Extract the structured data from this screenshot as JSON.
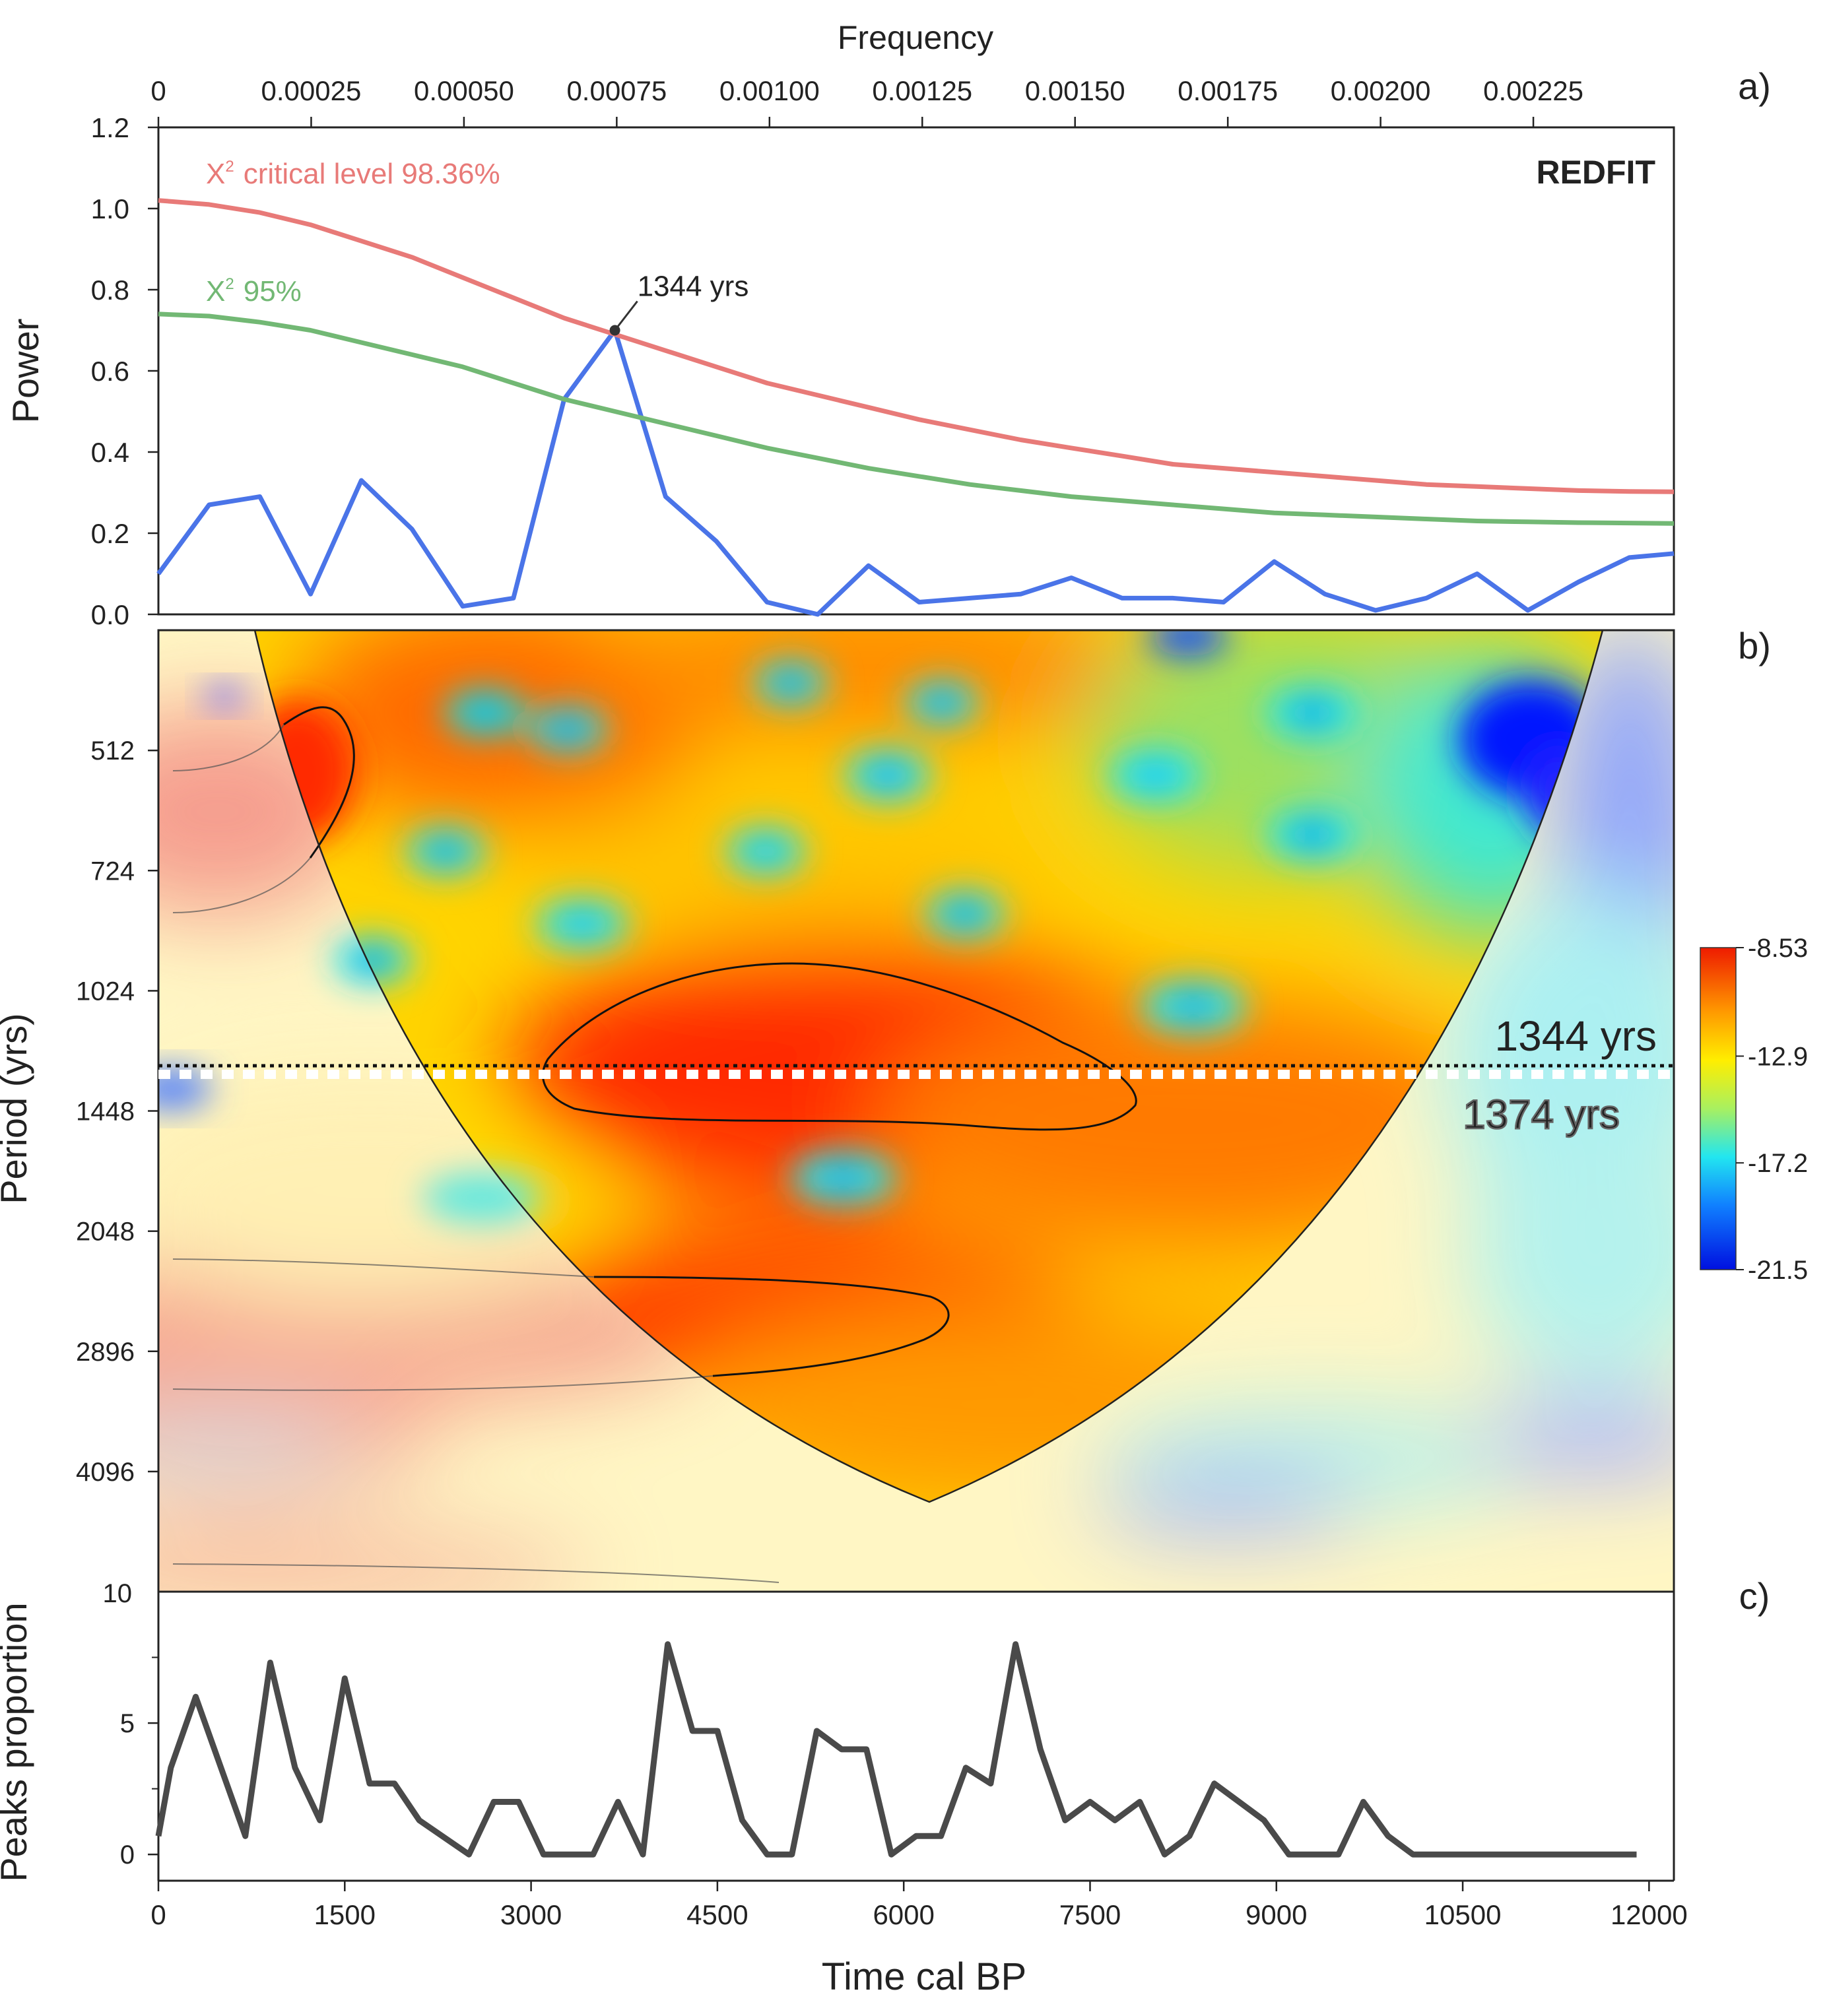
{
  "chart_data": [
    {
      "panel": "a)",
      "type": "line",
      "title": "REDFIT",
      "xlabel": "Frequency",
      "ylabel": "Power",
      "xlim": [
        0,
        0.00248
      ],
      "ylim": [
        0,
        1.2
      ],
      "x_ticks": [
        "0",
        "0.00025",
        "0.00050",
        "0.00075",
        "0.00100",
        "0.00125",
        "0.00150",
        "0.00175",
        "0.00200",
        "0.00225"
      ],
      "y_ticks": [
        "0.0",
        "0.2",
        "0.4",
        "0.6",
        "0.8",
        "1.0",
        "1.2"
      ],
      "x": [
        0,
        8.3e-05,
        0.000166,
        0.000249,
        0.000332,
        0.000415,
        0.000498,
        0.000581,
        0.000664,
        0.000747,
        0.00083,
        0.000913,
        0.000996,
        0.001079,
        0.001162,
        0.001245,
        0.001328,
        0.001411,
        0.001494,
        0.001577,
        0.00166,
        0.001743,
        0.001826,
        0.001909,
        0.001992,
        0.002075,
        0.002158,
        0.002241,
        0.002324,
        0.002407,
        0.00248
      ],
      "series": [
        {
          "name": "Power",
          "color": "#4a74e8",
          "values": [
            0.1,
            0.27,
            0.29,
            0.05,
            0.33,
            0.21,
            0.02,
            0.04,
            0.53,
            0.7,
            0.29,
            0.18,
            0.03,
            0.0,
            0.12,
            0.03,
            0.04,
            0.05,
            0.09,
            0.04,
            0.04,
            0.03,
            0.13,
            0.05,
            0.01,
            0.04,
            0.1,
            0.01,
            0.08,
            0.14,
            0.15
          ]
        },
        {
          "name": "χ² critical level 98.36%",
          "color": "#e87a78",
          "values": [
            1.02,
            1.01,
            0.99,
            0.96,
            0.92,
            0.88,
            0.83,
            0.78,
            0.73,
            0.69,
            0.65,
            0.61,
            0.57,
            0.54,
            0.51,
            0.48,
            0.455,
            0.43,
            0.41,
            0.39,
            0.37,
            0.36,
            0.35,
            0.34,
            0.33,
            0.32,
            0.315,
            0.31,
            0.305,
            0.303,
            0.302
          ]
        },
        {
          "name": "χ² 95%",
          "color": "#72b874",
          "values": [
            0.74,
            0.735,
            0.72,
            0.7,
            0.67,
            0.64,
            0.61,
            0.57,
            0.53,
            0.5,
            0.47,
            0.44,
            0.41,
            0.385,
            0.36,
            0.34,
            0.32,
            0.305,
            0.29,
            0.28,
            0.27,
            0.26,
            0.25,
            0.245,
            0.24,
            0.235,
            0.23,
            0.228,
            0.226,
            0.225,
            0.224
          ]
        }
      ],
      "legend": [
        "X² critical level 98.36%",
        "X² 95%"
      ],
      "annotation": {
        "text": "1344 yrs",
        "x": 0.000747,
        "y": 0.7
      }
    },
    {
      "panel": "b)",
      "type": "heatmap",
      "ylabel": "Period (yrs)",
      "y_ticks": [
        "512",
        "724",
        "1024",
        "1448",
        "2048",
        "2896",
        "4096"
      ],
      "y_scale": "log2",
      "ylim": [
        362,
        5792
      ],
      "xlim": [
        0,
        12200
      ],
      "colorbar_ticks": [
        "-8.53",
        "-12.9",
        "-17.2",
        "-21.5"
      ],
      "colorbar_range": [
        -21.5,
        -8.53
      ],
      "lines": [
        {
          "text": "1344 yrs",
          "style": "dotted",
          "period": 1344
        },
        {
          "text": "1374 yrs",
          "style": "dashed-white",
          "period": 1374
        }
      ]
    },
    {
      "panel": "c)",
      "type": "line",
      "xlabel": "Time cal BP",
      "ylabel": "Peaks proportion",
      "xlim": [
        0,
        12200
      ],
      "ylim": [
        -1,
        10
      ],
      "x_ticks": [
        "0",
        "1500",
        "3000",
        "4500",
        "6000",
        "7500",
        "9000",
        "10500",
        "12000"
      ],
      "y_ticks": [
        "0",
        "5",
        "10"
      ],
      "x": [
        0,
        100,
        300,
        700,
        900,
        1100,
        1300,
        1500,
        1700,
        1900,
        2100,
        2500,
        2700,
        2900,
        3100,
        3300,
        3500,
        3700,
        3900,
        4100,
        4300,
        4500,
        4700,
        4900,
        5100,
        5300,
        5500,
        5700,
        5900,
        6100,
        6300,
        6500,
        6700,
        6900,
        7100,
        7300,
        7500,
        7700,
        7900,
        8100,
        8300,
        8500,
        8700,
        8900,
        9100,
        9300,
        9500,
        9700,
        9900,
        10100,
        10500,
        11000,
        11500,
        11900
      ],
      "values": [
        0.7,
        3.3,
        6,
        0.7,
        7.3,
        3.3,
        1.3,
        6.7,
        2.7,
        2.7,
        1.3,
        0,
        2,
        2,
        0,
        0,
        0,
        2,
        0,
        8,
        4.7,
        4.7,
        1.3,
        0,
        0,
        4.7,
        4,
        4,
        0,
        0.7,
        0.7,
        3.3,
        2.7,
        8,
        4,
        1.3,
        2,
        1.3,
        2,
        0,
        0.7,
        2.7,
        2,
        1.3,
        0,
        0,
        0,
        2,
        0.7,
        0,
        0,
        0,
        0,
        0
      ]
    }
  ],
  "labels": {
    "panel_a": "a)",
    "panel_b": "b)",
    "panel_c": "c)",
    "redfit": "REDFIT",
    "frequency": "Frequency",
    "power": "Power",
    "period": "Period (yrs)",
    "peaks": "Peaks proportion",
    "time": "Time cal BP",
    "crit_prefix": "X",
    "crit_sup": "2",
    "crit_high": "critical level 98.36%",
    "crit_low": "95%",
    "peak_annot": "1344 yrs",
    "line_1344": "1344 yrs",
    "line_1374": "1374 yrs",
    "c_top_tick": "10"
  },
  "colors": {
    "power": "#4a74e8",
    "crit_high": "#e87a78",
    "crit_low": "#72b874",
    "peaks": "#4a4a4a"
  }
}
